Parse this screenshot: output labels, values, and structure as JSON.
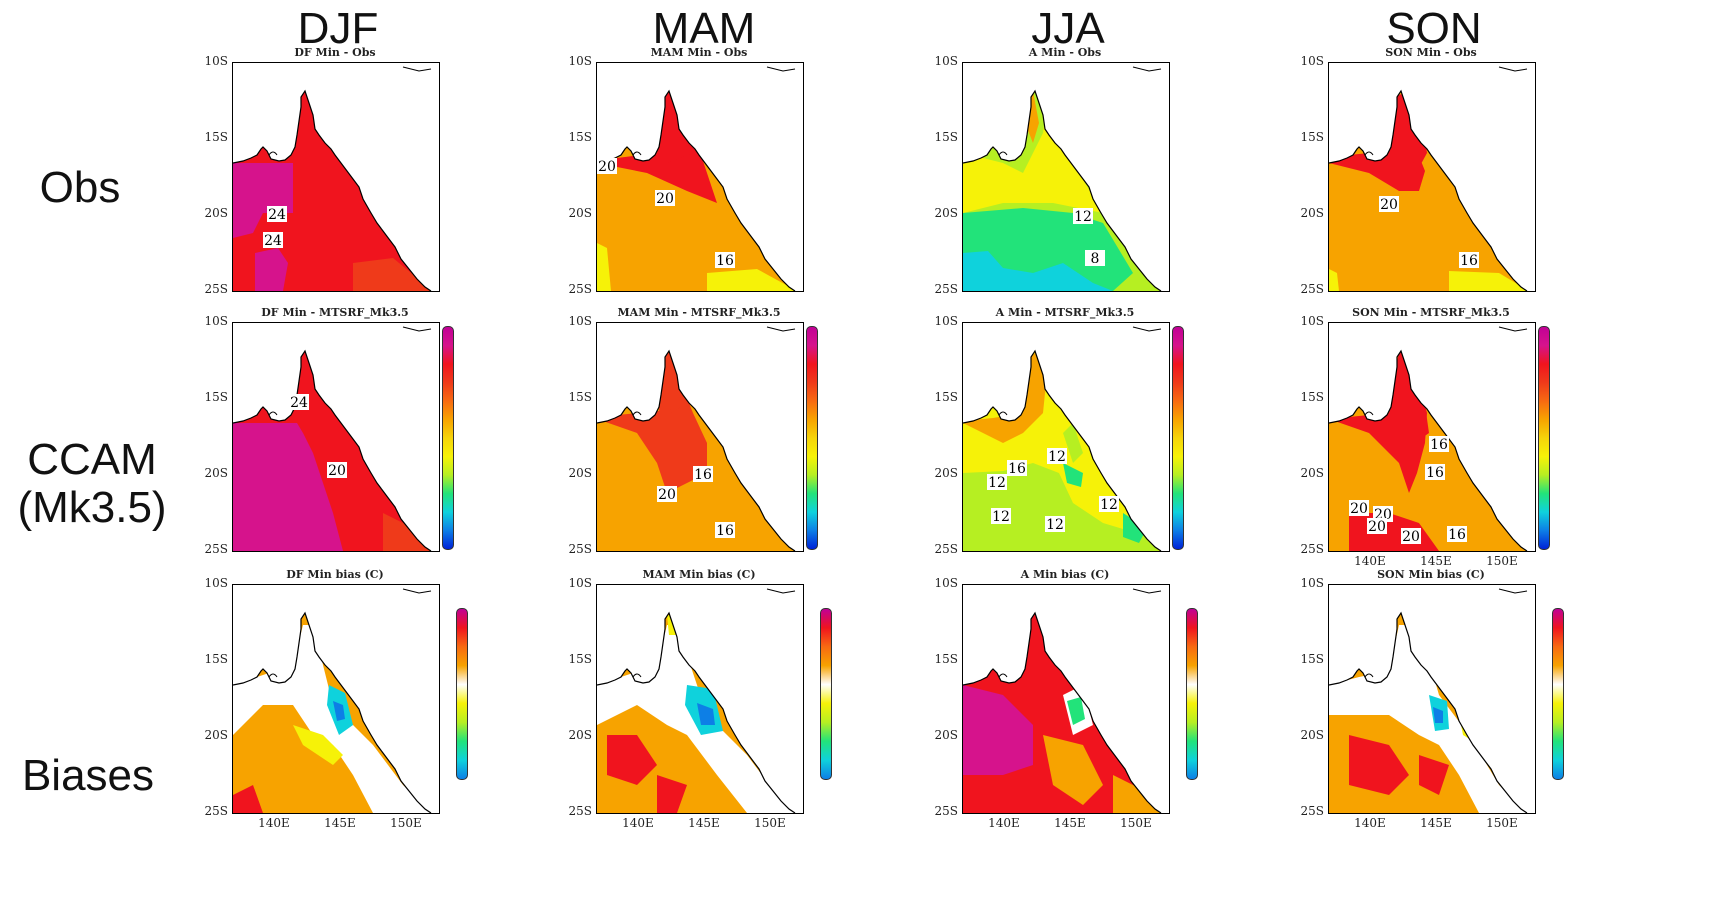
{
  "columns": [
    "DJF",
    "MAM",
    "JJA",
    "SON"
  ],
  "rows": [
    "Obs",
    "CCAM\n(Mk3.5)",
    "Biases"
  ],
  "panel_titles": [
    [
      "DF Min - Obs",
      "MAM Min - Obs",
      "A Min - Obs",
      "SON Min - Obs"
    ],
    [
      "DF Min - MTSRF_Mk3.5",
      "MAM Min - MTSRF_Mk3.5",
      "A Min - MTSRF_Mk3.5",
      "SON Min - MTSRF_Mk3.5"
    ],
    [
      "DF Min bias (C)",
      "MAM Min bias (C)",
      "A Min bias (C)",
      "SON Min bias (C)"
    ]
  ],
  "y_ticks": [
    "10S",
    "15S",
    "20S",
    "25S"
  ],
  "x_ticks": [
    "140E",
    "145E",
    "150E"
  ],
  "contour_labels": {
    "r0c0": [
      "24",
      "24"
    ],
    "r0c1": [
      "20",
      "20",
      "16"
    ],
    "r0c2": [
      "12",
      "8"
    ],
    "r0c3": [
      "20",
      "16"
    ],
    "r1c0": [
      "24",
      "20"
    ],
    "r1c1": [
      "16",
      "20",
      "16"
    ],
    "r1c2": [
      "16",
      "12",
      "12",
      "12",
      "12",
      "12"
    ],
    "r1c3": [
      "16",
      "16",
      "20",
      "20",
      "20",
      "20",
      "16"
    ]
  },
  "colors": {
    "magenta": "#d6138c",
    "red": "#f0141e",
    "redorange": "#ef3a1a",
    "orange": "#f7a300",
    "yellow": "#f6f208",
    "lime": "#b6ef22",
    "green": "#22e37a",
    "cyan": "#0fd2dc",
    "blue": "#0d7fe6",
    "white": "#ffffff"
  }
}
